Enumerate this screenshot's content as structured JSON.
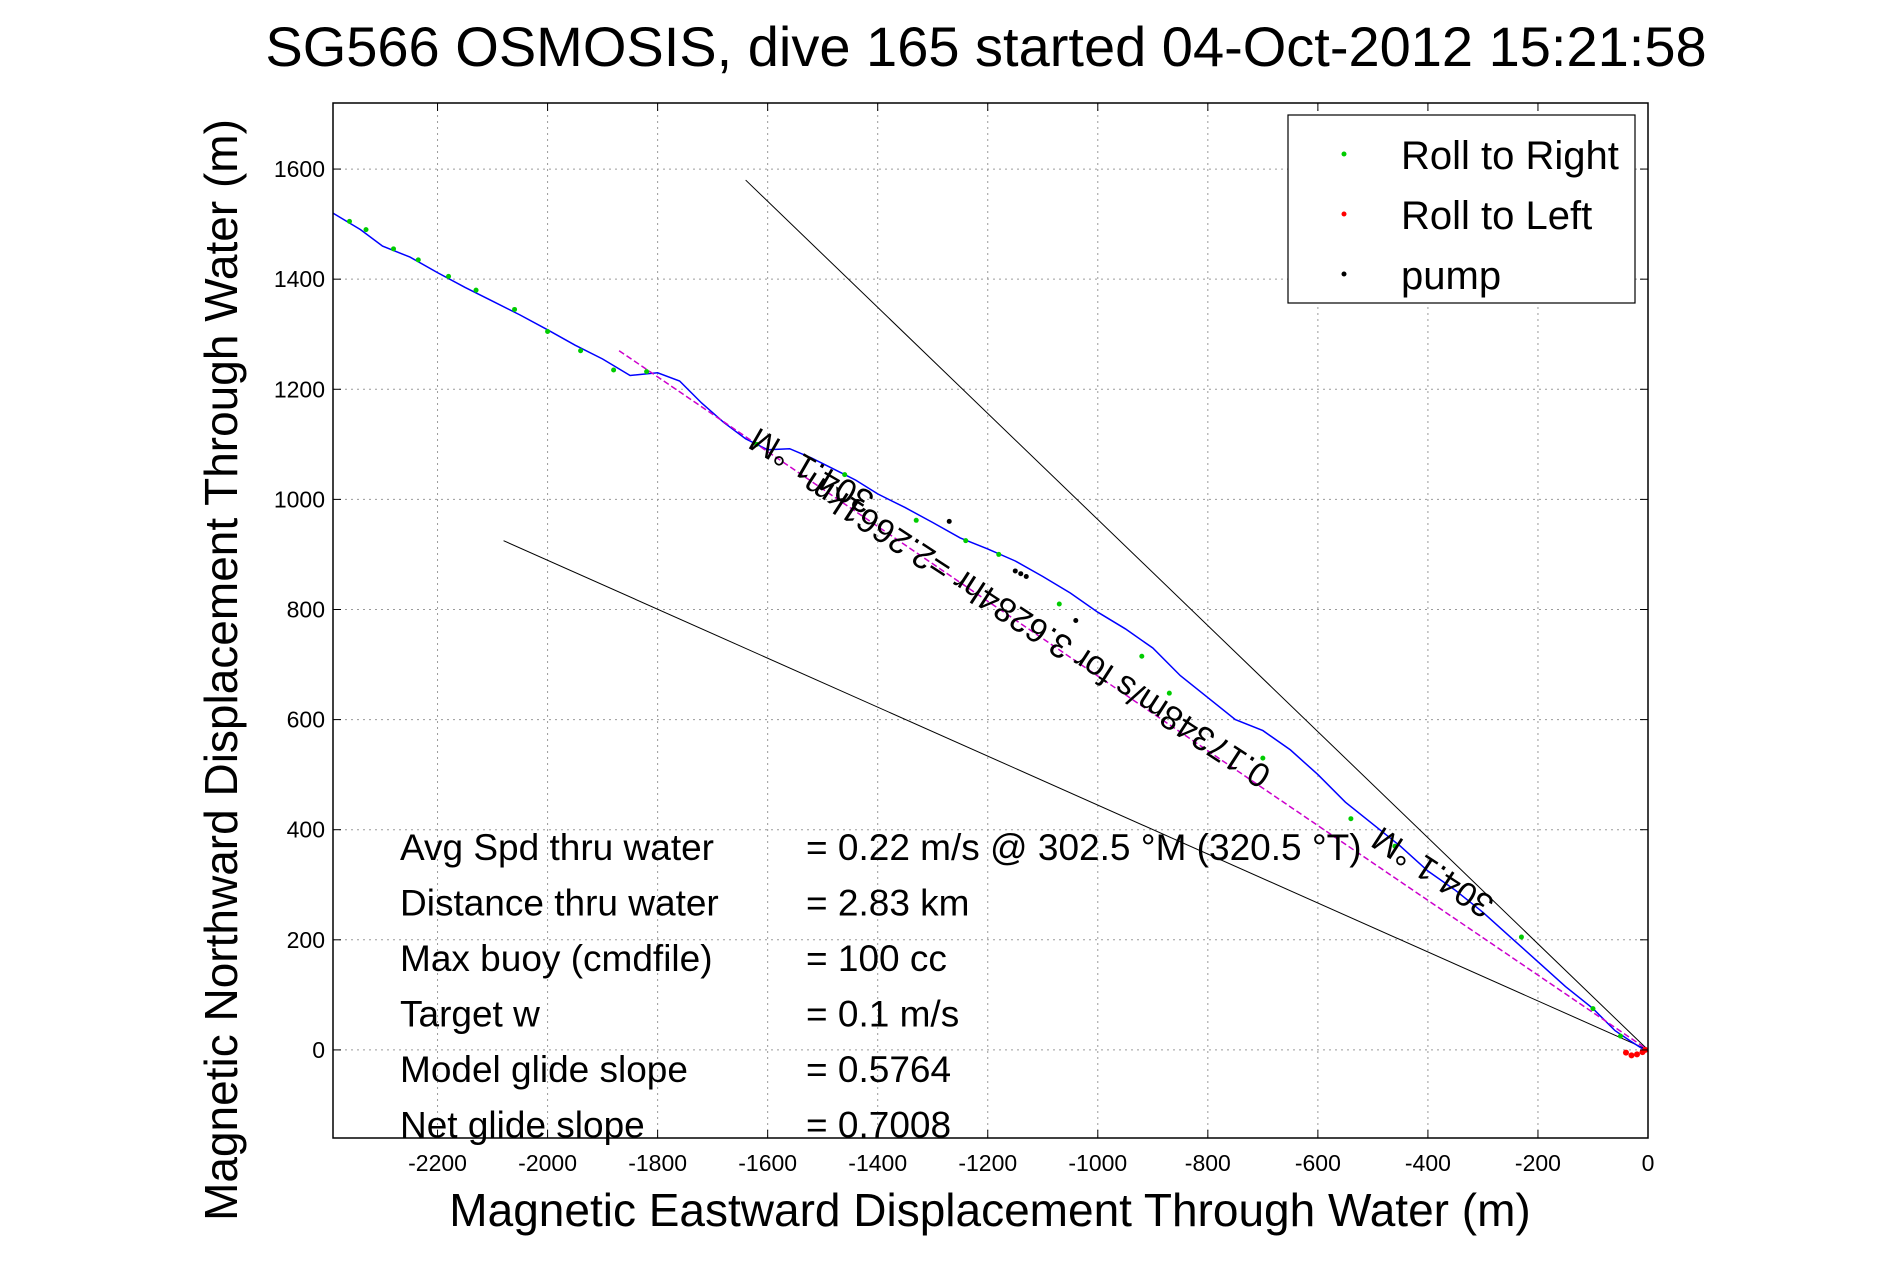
{
  "chart_data": {
    "type": "line",
    "title": "SG566 OSMOSIS, dive 165 started 04-Oct-2012 15:21:58",
    "xlabel": "Magnetic Eastward Displacement Through Water (m)",
    "ylabel": "Magnetic Northward Displacement Through Water (m)",
    "xlim": [
      -2390,
      0
    ],
    "ylim": [
      -160,
      1720
    ],
    "xticks": [
      -2200,
      -2000,
      -1800,
      -1600,
      -1400,
      -1200,
      -1000,
      -800,
      -600,
      -400,
      -200,
      0
    ],
    "yticks": [
      0,
      200,
      400,
      600,
      800,
      1000,
      1200,
      1400,
      1600
    ],
    "xtick_labels": [
      "-2200",
      "-2000",
      "-1800",
      "-1600",
      "-1400",
      "-1200",
      "-1000",
      "-800",
      "-600",
      "-400",
      "-200",
      "0"
    ],
    "ytick_labels": [
      "0",
      "200",
      "400",
      "600",
      "800",
      "1000",
      "1200",
      "1400",
      "1600"
    ],
    "grid": true,
    "legend_position": "top-right",
    "legend": [
      {
        "label": "Roll to Right",
        "color": "#00cc00"
      },
      {
        "label": "Roll to Left",
        "color": "#ff0000"
      },
      {
        "label": "pump",
        "color": "#000000"
      }
    ],
    "series": [
      {
        "name": "track",
        "color": "#0000ff",
        "x": [
          -2390,
          -2340,
          -2300,
          -2250,
          -2200,
          -2150,
          -2100,
          -2050,
          -2000,
          -1950,
          -1900,
          -1850,
          -1800,
          -1760,
          -1720,
          -1680,
          -1640,
          -1600,
          -1560,
          -1520,
          -1480,
          -1440,
          -1400,
          -1350,
          -1300,
          -1250,
          -1200,
          -1150,
          -1100,
          -1050,
          -1000,
          -950,
          -900,
          -850,
          -800,
          -750,
          -700,
          -650,
          -600,
          -550,
          -500,
          -450,
          -400,
          -350,
          -300,
          -250,
          -200,
          -150,
          -100,
          -60,
          -30,
          -10,
          0
        ],
        "y": [
          1520,
          1490,
          1460,
          1440,
          1412,
          1385,
          1360,
          1335,
          1308,
          1280,
          1255,
          1225,
          1230,
          1215,
          1175,
          1140,
          1110,
          1090,
          1092,
          1075,
          1055,
          1035,
          1010,
          985,
          958,
          930,
          910,
          888,
          860,
          830,
          795,
          765,
          730,
          680,
          640,
          600,
          580,
          545,
          500,
          450,
          410,
          370,
          325,
          290,
          250,
          205,
          160,
          115,
          75,
          35,
          15,
          2,
          0
        ]
      },
      {
        "name": "heading line",
        "color": "#cc00cc",
        "x": [
          -1870,
          0
        ],
        "y": [
          1270,
          0
        ]
      }
    ],
    "markers": {
      "roll_right": {
        "color": "#00cc00",
        "x": [
          -2360,
          -2330,
          -2280,
          -2235,
          -2180,
          -2130,
          -2060,
          -2000,
          -1940,
          -1880,
          -1820,
          -1620,
          -1460,
          -1330,
          -1240,
          -1180,
          -1070,
          -920,
          -870,
          -700,
          -540,
          -460,
          -230,
          -100,
          -50
        ],
        "y": [
          1505,
          1490,
          1455,
          1435,
          1405,
          1380,
          1345,
          1305,
          1270,
          1235,
          1232,
          1100,
          1045,
          962,
          925,
          900,
          810,
          715,
          648,
          530,
          420,
          370,
          205,
          75,
          25
        ]
      },
      "roll_left": {
        "color": "#ff0000",
        "x": [
          -40,
          -30,
          -20,
          -10,
          -5
        ],
        "y": [
          -5,
          -10,
          -8,
          -4,
          0
        ]
      },
      "pump": {
        "color": "#000000",
        "x": [
          -1270,
          -1150,
          -1140,
          -1130,
          -1040
        ],
        "y": [
          960,
          870,
          865,
          860,
          780
        ]
      }
    },
    "reference_lines": [
      {
        "x": [
          -1640,
          0
        ],
        "y": [
          1580,
          0
        ]
      },
      {
        "x": [
          -2080,
          0
        ],
        "y": [
          925,
          0
        ]
      }
    ],
    "annotations": [
      {
        "text": "304.1 °M",
        "x": -1510,
        "y": 1070,
        "rotation_deg": 210
      },
      {
        "text": "0.17348m/s for 3.6284hr =2.2661km",
        "x": -1100,
        "y": 780,
        "rotation_deg": 213
      },
      {
        "text": "304.1 °M",
        "x": -380,
        "y": 340,
        "rotation_deg": 213
      }
    ],
    "stats": [
      {
        "label": "Avg Spd thru water",
        "value": "=  0.22 m/s @ 302.5  °M (320.5 °T)"
      },
      {
        "label": "Distance thru water",
        "value": "=  2.83 km"
      },
      {
        "label": "Max buoy (cmdfile)",
        "value": "= 100 cc"
      },
      {
        "label": "Target w",
        "value": "= 0.1 m/s"
      },
      {
        "label": "Model glide slope",
        "value": "= 0.5764"
      },
      {
        "label": "Net glide slope",
        "value": "= 0.7008"
      }
    ]
  }
}
